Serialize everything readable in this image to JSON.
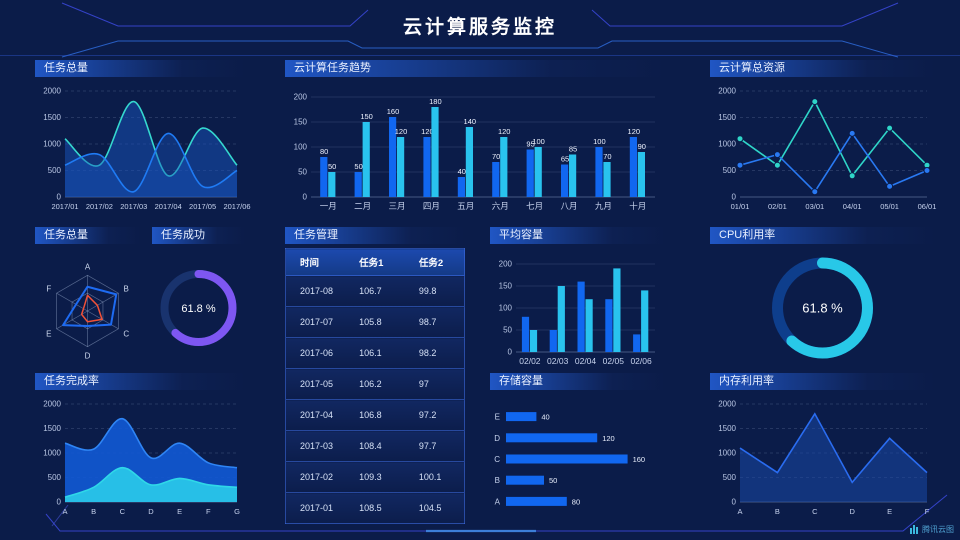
{
  "header": {
    "title": "云计算服务监控"
  },
  "watermark": {
    "label": "腾讯云图"
  },
  "panels": {
    "task_total_area": {
      "title": "任务总量"
    },
    "task_trend": {
      "title": "云计算任务趋势"
    },
    "total_resource": {
      "title": "云计算总资源"
    },
    "task_total_radar": {
      "title": "任务总量"
    },
    "task_success": {
      "title": "任务成功"
    },
    "task_manage": {
      "title": "任务管理"
    },
    "avg_capacity": {
      "title": "平均容量"
    },
    "cpu_usage": {
      "title": "CPU利用率"
    },
    "task_complete": {
      "title": "任务完成率"
    },
    "storage": {
      "title": "存储容量"
    },
    "memory": {
      "title": "内存利用率"
    }
  },
  "table": {
    "headers": [
      "时间",
      "任务1",
      "任务2"
    ],
    "rows": [
      [
        "2017-08",
        "106.7",
        "99.8"
      ],
      [
        "2017-07",
        "105.8",
        "98.7"
      ],
      [
        "2017-06",
        "106.1",
        "98.2"
      ],
      [
        "2017-05",
        "106.2",
        "97"
      ],
      [
        "2017-04",
        "106.8",
        "97.2"
      ],
      [
        "2017-03",
        "108.4",
        "97.7"
      ],
      [
        "2017-02",
        "109.3",
        "100.1"
      ],
      [
        "2017-01",
        "108.5",
        "104.5"
      ]
    ]
  },
  "chart_data": [
    {
      "id": "task_total_area",
      "type": "line",
      "smooth": true,
      "dashed": true,
      "title": "任务总量",
      "x": [
        "2017/01",
        "2017/02",
        "2017/03",
        "2017/04",
        "2017/05",
        "2017/06"
      ],
      "ylim": [
        0,
        2000
      ],
      "yticks": [
        0,
        500,
        1000,
        1500,
        2000
      ],
      "series": [
        {
          "name": "series-teal",
          "color": "#35d8cf",
          "fill": "rgba(23,84,189,0.50)",
          "values": [
            1100,
            600,
            1800,
            400,
            1300,
            600
          ]
        },
        {
          "name": "series-blue",
          "color": "#1f7bf4",
          "fill": "rgba(23,84,189,0.42)",
          "values": [
            600,
            800,
            100,
            1200,
            200,
            500
          ]
        }
      ]
    },
    {
      "id": "task_trend",
      "type": "bar",
      "labels": true,
      "title": "云计算任务趋势",
      "x": [
        "一月",
        "二月",
        "三月",
        "四月",
        "五月",
        "六月",
        "七月",
        "八月",
        "九月",
        "十月"
      ],
      "ylim": [
        0,
        200
      ],
      "yticks": [
        0,
        50,
        100,
        150,
        200
      ],
      "series": [
        {
          "name": "任务1",
          "color": "#1167f0",
          "values": [
            80,
            50,
            160,
            120,
            40,
            70,
            95,
            65,
            100,
            120
          ]
        },
        {
          "name": "任务2",
          "color": "#29c3ee",
          "values": [
            50,
            150,
            120,
            180,
            140,
            120,
            100,
            85,
            70,
            90
          ]
        }
      ]
    },
    {
      "id": "total_resource",
      "type": "line",
      "smooth": false,
      "dashed": true,
      "markers": true,
      "title": "云计算总资源",
      "x": [
        "01/01",
        "02/01",
        "03/01",
        "04/01",
        "05/01",
        "06/01"
      ],
      "ylim": [
        0,
        2000
      ],
      "yticks": [
        0,
        500,
        1000,
        1500,
        2000
      ],
      "series": [
        {
          "name": "series-teal",
          "color": "#2fd5c8",
          "values": [
            1100,
            600,
            1800,
            400,
            1300,
            600
          ]
        },
        {
          "name": "series-blue",
          "color": "#2979f2",
          "values": [
            600,
            800,
            100,
            1200,
            200,
            500
          ]
        }
      ]
    },
    {
      "id": "task_total_radar",
      "type": "radar",
      "title": "任务总量",
      "axes": [
        "A",
        "B",
        "C",
        "D",
        "E",
        "F"
      ],
      "max": 100,
      "series": [
        {
          "name": "series-blue",
          "color": "#1e6bf2",
          "values": [
            68,
            93,
            76,
            42,
            79,
            37
          ]
        },
        {
          "name": "series-red",
          "color": "#f05138",
          "values": [
            44,
            32,
            47,
            30,
            19,
            13
          ]
        }
      ]
    },
    {
      "id": "task_success",
      "type": "donut",
      "title": "任务成功",
      "value": 61.8,
      "label": "61.8 %",
      "color": "#7e57f2",
      "track": "#19336e",
      "r": 34,
      "sw": 8,
      "font": 11
    },
    {
      "id": "avg_capacity",
      "type": "bar",
      "labels": false,
      "title": "平均容量",
      "x": [
        "02/02",
        "02/03",
        "02/04",
        "02/05",
        "02/06"
      ],
      "ylim": [
        0,
        200
      ],
      "yticks": [
        0,
        50,
        100,
        150,
        200
      ],
      "series": [
        {
          "name": "series-blue",
          "color": "#1167f0",
          "values": [
            80,
            50,
            160,
            120,
            40
          ]
        },
        {
          "name": "series-cyan",
          "color": "#29c3ee",
          "values": [
            50,
            150,
            120,
            190,
            140
          ]
        }
      ]
    },
    {
      "id": "cpu_usage",
      "type": "donut",
      "title": "CPU利用率",
      "value": 61.8,
      "label": "61.8 %",
      "color": "#28c8e8",
      "track": "#0e3e8c",
      "r": 45,
      "sw": 11,
      "font": 13
    },
    {
      "id": "task_complete",
      "type": "line",
      "smooth": true,
      "dashed": true,
      "title": "任务完成率",
      "x": [
        "A",
        "B",
        "C",
        "D",
        "E",
        "F",
        "G"
      ],
      "ylim": [
        0,
        2000
      ],
      "yticks": [
        0,
        500,
        1000,
        1500,
        2000
      ],
      "series": [
        {
          "name": "series-blue",
          "color": "#2f85f5",
          "fill": "rgba(17,88,210,0.92)",
          "values": [
            1200,
            1080,
            1700,
            900,
            1200,
            800,
            700
          ]
        },
        {
          "name": "series-cyan",
          "color": "#2fd8e8",
          "fill": "rgba(41,197,233,0.95)",
          "values": [
            100,
            300,
            700,
            350,
            480,
            350,
            300
          ]
        }
      ]
    },
    {
      "id": "storage",
      "type": "hbar",
      "title": "存储容量",
      "categories": [
        "E",
        "D",
        "C",
        "B",
        "A"
      ],
      "values": [
        40,
        120,
        160,
        50,
        80
      ],
      "xmax": 175,
      "color": "#1167f0"
    },
    {
      "id": "memory",
      "type": "line",
      "smooth": false,
      "dashed": true,
      "title": "内存利用率",
      "x": [
        "A",
        "B",
        "C",
        "D",
        "E",
        "F"
      ],
      "ylim": [
        0,
        2000
      ],
      "yticks": [
        0,
        500,
        1000,
        1500,
        2000
      ],
      "series": [
        {
          "name": "series-blue",
          "color": "#2a6cf0",
          "fill": "rgba(25,72,165,0.55)",
          "values": [
            1100,
            600,
            1800,
            400,
            1300,
            600
          ]
        }
      ]
    }
  ]
}
